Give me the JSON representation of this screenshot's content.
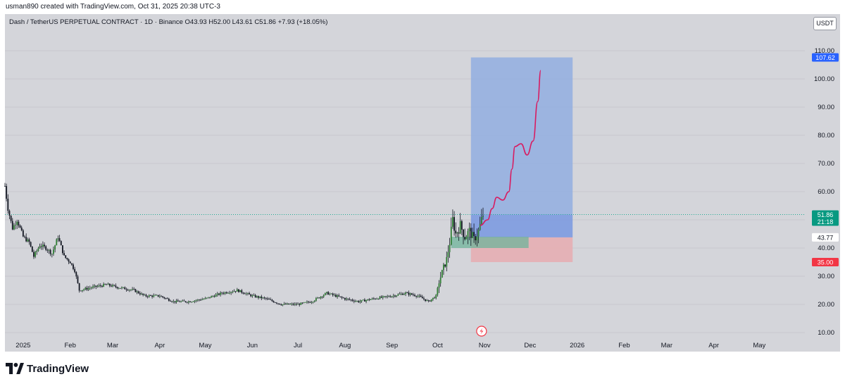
{
  "header": {
    "credit": "usman890 created with TradingView.com, Oct 31, 2025 20:38 UTC-3"
  },
  "legend": {
    "text": "Dash / TetherUS PERPETUAL CONTRACT · 1D · Binance  O43.93  H52.00  L43.61  C51.86  +7.93 (+18.05%)"
  },
  "currency_button": "USDT",
  "footer": {
    "brand": "TradingView"
  },
  "colors": {
    "background": "#d4d5da",
    "up": "#000000",
    "down": "#000000",
    "profit_zone": "#92aee0",
    "loss_zone": "#e5aeb3",
    "entry_zone": "#6fb39a",
    "projection": "#d81b60",
    "target_badge": "#2962ff",
    "stop_badge": "#f23645",
    "last_price_badge": "#089981"
  },
  "chart_data": {
    "type": "candlestick",
    "title": "Dash / TetherUS PERPETUAL CONTRACT · 1D · Binance",
    "y_ticks": [
      "110.00",
      "100.00",
      "90.00",
      "80.00",
      "70.00",
      "60.00",
      "50.00",
      "40.00",
      "30.00",
      "20.00",
      "10.00"
    ],
    "x_ticks": [
      "2025",
      "Feb",
      "Mar",
      "Apr",
      "May",
      "Jun",
      "Jul",
      "Aug",
      "Sep",
      "Oct",
      "Nov",
      "Dec",
      "2026",
      "Feb",
      "Mar",
      "Apr",
      "May"
    ],
    "ylim": [
      8,
      118
    ],
    "price_points": [
      [
        "2024-12-20",
        62
      ],
      [
        "2024-12-22",
        54
      ],
      [
        "2024-12-25",
        47
      ],
      [
        "2024-12-28",
        50
      ],
      [
        "2025-01-01",
        44
      ],
      [
        "2025-01-05",
        42
      ],
      [
        "2025-01-08",
        37
      ],
      [
        "2025-01-12",
        41
      ],
      [
        "2025-01-16",
        40
      ],
      [
        "2025-01-20",
        38
      ],
      [
        "2025-01-24",
        44
      ],
      [
        "2025-01-28",
        37
      ],
      [
        "2025-02-01",
        35
      ],
      [
        "2025-02-04",
        32
      ],
      [
        "2025-02-07",
        25
      ],
      [
        "2025-02-15",
        26
      ],
      [
        "2025-02-25",
        27
      ],
      [
        "2025-03-05",
        26
      ],
      [
        "2025-03-15",
        25
      ],
      [
        "2025-03-22",
        23
      ],
      [
        "2025-04-01",
        23
      ],
      [
        "2025-04-10",
        21
      ],
      [
        "2025-04-20",
        21
      ],
      [
        "2025-05-01",
        22
      ],
      [
        "2025-05-12",
        24
      ],
      [
        "2025-05-22",
        25
      ],
      [
        "2025-06-01",
        23
      ],
      [
        "2025-06-10",
        22
      ],
      [
        "2025-06-20",
        20
      ],
      [
        "2025-07-01",
        20
      ],
      [
        "2025-07-10",
        21
      ],
      [
        "2025-07-20",
        24
      ],
      [
        "2025-08-01",
        22
      ],
      [
        "2025-08-10",
        21
      ],
      [
        "2025-08-20",
        22
      ],
      [
        "2025-09-01",
        23
      ],
      [
        "2025-09-10",
        24
      ],
      [
        "2025-09-18",
        23
      ],
      [
        "2025-09-25",
        21
      ],
      [
        "2025-09-30",
        23
      ],
      [
        "2025-10-02",
        28
      ],
      [
        "2025-10-05",
        33
      ],
      [
        "2025-10-07",
        36
      ],
      [
        "2025-10-09",
        42
      ],
      [
        "2025-10-11",
        50
      ],
      [
        "2025-10-13",
        45
      ],
      [
        "2025-10-16",
        48
      ],
      [
        "2025-10-19",
        44
      ],
      [
        "2025-10-22",
        46
      ],
      [
        "2025-10-25",
        43
      ],
      [
        "2025-10-28",
        46
      ],
      [
        "2025-10-31",
        51.86
      ]
    ],
    "last_price": "51.86",
    "countdown": "21:18",
    "entry_price": "43.77",
    "target_price": "107.62",
    "stop_price": "35.00",
    "position": {
      "start": "2025-10-23",
      "end": "2025-12-29",
      "entry": 43.77,
      "target": 107.62,
      "stop": 35.0,
      "current": 51.86
    },
    "entry_zone": {
      "start": "2025-10-10",
      "end": "2025-11-30",
      "low": 40.0,
      "high": 44.0
    },
    "projection_path": [
      [
        "2025-10-29",
        48
      ],
      [
        "2025-11-03",
        50
      ],
      [
        "2025-11-06",
        54
      ],
      [
        "2025-11-09",
        58
      ],
      [
        "2025-11-13",
        57
      ],
      [
        "2025-11-17",
        60
      ],
      [
        "2025-11-19",
        68
      ],
      [
        "2025-11-21",
        76
      ],
      [
        "2025-11-25",
        77
      ],
      [
        "2025-11-29",
        73
      ],
      [
        "2025-12-03",
        78
      ],
      [
        "2025-12-06",
        92
      ],
      [
        "2025-12-08",
        103
      ]
    ]
  }
}
